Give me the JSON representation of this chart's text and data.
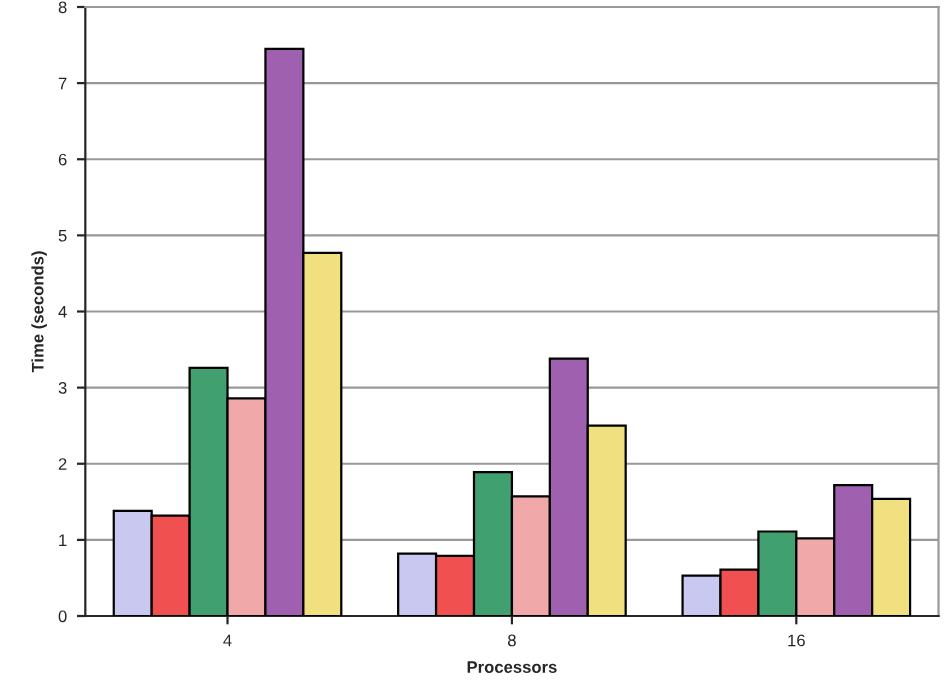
{
  "chart_data": {
    "type": "bar",
    "xlabel": "Processors",
    "ylabel": "Time (seconds)",
    "categories": [
      "4",
      "8",
      "16"
    ],
    "series": [
      {
        "color": "#c8c8f0",
        "values": [
          1.38,
          0.82,
          0.53
        ]
      },
      {
        "color": "#f05050",
        "values": [
          1.32,
          0.79,
          0.61
        ]
      },
      {
        "color": "#40a070",
        "values": [
          3.26,
          1.89,
          1.11
        ]
      },
      {
        "color": "#f0a8a8",
        "values": [
          2.86,
          1.57,
          1.02
        ]
      },
      {
        "color": "#a060b0",
        "values": [
          7.45,
          3.38,
          1.72
        ]
      },
      {
        "color": "#f0e080",
        "values": [
          4.77,
          2.5,
          1.54
        ]
      }
    ],
    "ylim": [
      0,
      8
    ],
    "yticks": [
      0,
      1,
      2,
      3,
      4,
      5,
      6,
      7,
      8
    ],
    "grid": "y",
    "legend": false
  }
}
